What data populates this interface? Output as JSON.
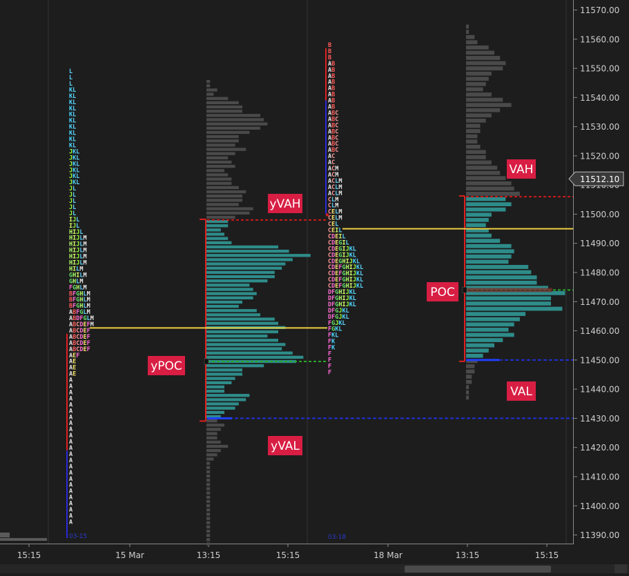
{
  "chart_data": {
    "type": "market_profile",
    "y_axis": {
      "range": [
        11386,
        11574
      ],
      "ticks": [
        11570,
        11560,
        11550,
        11540,
        11530,
        11520,
        11510,
        11500,
        11490,
        11480,
        11470,
        11460,
        11450,
        11440,
        11430,
        11420,
        11410,
        11400,
        11390
      ],
      "tick_labels": [
        "11570.00",
        "11560.00",
        "11550.00",
        "11540.00",
        "11530.00",
        "11520.00",
        "11510.00",
        "11500.00",
        "11490.00",
        "11480.00",
        "11470.00",
        "11460.00",
        "11450.00",
        "11440.00",
        "11430.00",
        "11420.00",
        "11410.00",
        "11400.00",
        "11390.00"
      ]
    },
    "x_axis": {
      "tick_labels": [
        "15:15",
        "15 Mar",
        "13:15",
        "15:15",
        "18 Mar",
        "13:15",
        "15:15"
      ]
    },
    "current_price": 11512.1,
    "current_price_label": "11512.10",
    "levels": {
      "yVAH": 11498,
      "yPOC": 11461,
      "yPOC_dashed": 11449.5,
      "yVAL": 11430,
      "VAH": 11506,
      "POC": 11495,
      "POC_dashed": 11474,
      "VAL": 11450
    },
    "annotations": [
      "yVAH",
      "yPOC",
      "yVAL",
      "VAH",
      "POC",
      "VAL"
    ],
    "session_labels": [
      "03-15",
      "03-18"
    ],
    "tpo_day1": {
      "top": 11550,
      "rows": [
        "L",
        "L",
        "L",
        "KL",
        "KL",
        "KL",
        "KL",
        "KL",
        "KL",
        "KL",
        "KL",
        "KL",
        "KL",
        "JKL",
        "JKL",
        "JKL",
        "JKL",
        "JKL",
        "JKL",
        "JL",
        "JL",
        "JL",
        "JL",
        "JL",
        "IJL",
        "IJL",
        "HIJL",
        "HIJLM",
        "HIJLM",
        "HIJLM",
        "HIJLM",
        "HIJLM",
        "HILM",
        "GHILM",
        "GHLM",
        "FGHLM",
        "BFGHLM",
        "BFGHLM",
        "BFGHLM",
        "ABFGLM",
        "ABDFGLM",
        "ABCDEFM",
        "ABCDEF",
        "ABCDEF",
        "ABCDEF",
        "ABCDEF",
        "AEF",
        "AE",
        "AE",
        "AE",
        "A",
        "A",
        "A",
        "A",
        "A",
        "A",
        "A",
        "A",
        "A",
        "A",
        "A",
        "A",
        "A",
        "A",
        "A",
        "A",
        "A",
        "A",
        "A",
        "A",
        "A",
        "A",
        "A",
        "A"
      ]
    },
    "tpo_day2": {
      "top": 11559,
      "rows": [
        "B",
        "B",
        "B",
        "AB",
        "AB",
        "AB",
        "AB",
        "AB",
        "AB",
        "AB",
        "AB",
        "ABC",
        "ABC",
        "ABC",
        "ABC",
        "ABC",
        "ABC",
        "ABC",
        "AC",
        "AC",
        "ACM",
        "ACM",
        "ACLM",
        "ACLM",
        "ACLM",
        "CLM",
        "CLM",
        "CELM",
        "CELM",
        "CEL",
        "CEIL",
        "CDEIL",
        "CDEGIL",
        "CDEGIJKL",
        "CDEGIJKL",
        "CDEGHIJKL",
        "CDEFGHIJKL",
        "CDEFGHIJKL",
        "CDEFGHIJKL",
        "CDEFGHIJKL",
        "DFGHIJKL",
        "DFGHIJKL",
        "DFGHIJKL",
        "DFGJKL",
        "DFGJKL",
        "FGJKL",
        "FGKL",
        "FKL",
        "FK",
        "FK",
        "F",
        "F",
        "F",
        "F"
      ]
    },
    "volume_profile_day1": {
      "top": 11546,
      "bottom": 11386,
      "bars": [
        1,
        1,
        3,
        2,
        6,
        9,
        10,
        10,
        15,
        16,
        17,
        15,
        12,
        9,
        9,
        8,
        11,
        8,
        6,
        7,
        8,
        5,
        6,
        7,
        7,
        9,
        11,
        10,
        10,
        9,
        13,
        12,
        8,
        6,
        6,
        4,
        5,
        6,
        7,
        20,
        23,
        29,
        24,
        22,
        21,
        19,
        19,
        17,
        12,
        13,
        14,
        13,
        10,
        9,
        14,
        15,
        19,
        20,
        22,
        20,
        17,
        20,
        22,
        21,
        24,
        27,
        25,
        16,
        10,
        10,
        8,
        7,
        5,
        5,
        12,
        11,
        9,
        8,
        5,
        4,
        3,
        5,
        4,
        3,
        3,
        4,
        6,
        4,
        3,
        2,
        1,
        1,
        1,
        1,
        1,
        1,
        1,
        1,
        1,
        1,
        1,
        1,
        1,
        1,
        1,
        1,
        1,
        1,
        1,
        1
      ]
    },
    "volume_profile_day2": {
      "top": 11565,
      "bottom": 11436,
      "bars": [
        1,
        1,
        3,
        4,
        8,
        10,
        12,
        14,
        13,
        9,
        8,
        7,
        6,
        9,
        13,
        16,
        12,
        9,
        7,
        5,
        5,
        4,
        4,
        5,
        7,
        7,
        9,
        11,
        12,
        14,
        16,
        17,
        19,
        14,
        16,
        14,
        9,
        8,
        7,
        8,
        9,
        12,
        16,
        17,
        16,
        15,
        22,
        23,
        25,
        25,
        29,
        35,
        30,
        30,
        34,
        21,
        19,
        17,
        15,
        17,
        13,
        10,
        8,
        6,
        4,
        3,
        3,
        2,
        2,
        1,
        1,
        1
      ]
    }
  }
}
